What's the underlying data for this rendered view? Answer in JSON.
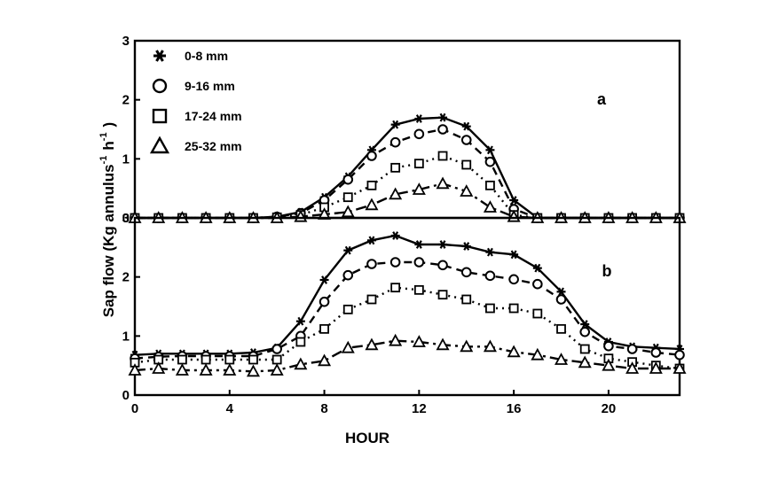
{
  "chart_data": {
    "type": "line",
    "xlabel": "HOUR",
    "ylabel": "Sap flow (Kg annulus",
    "ylabel_unit_parts": [
      "-1",
      "h",
      "-1",
      ")"
    ],
    "xlim": [
      0,
      23
    ],
    "ylim": [
      0,
      3
    ],
    "x_ticks": [
      "0",
      "4",
      "8",
      "12",
      "16",
      "20"
    ],
    "y_ticks": [
      "0",
      "1",
      "2",
      "3"
    ],
    "legend": [
      {
        "label": "0-8 mm",
        "symbol": "star"
      },
      {
        "label": "9-16 mm",
        "symbol": "circle"
      },
      {
        "label": "17-24 mm",
        "symbol": "square"
      },
      {
        "label": "25-32 mm",
        "symbol": "triangle"
      }
    ],
    "x": [
      0,
      1,
      2,
      3,
      4,
      5,
      6,
      7,
      8,
      9,
      10,
      11,
      12,
      13,
      14,
      15,
      16,
      17,
      18,
      19,
      20,
      21,
      22,
      23
    ],
    "panels": [
      {
        "tag": "a",
        "series": [
          {
            "name": "0-8 mm",
            "symbol": "star",
            "dash": "solid",
            "values": [
              0,
              0,
              0,
              0,
              0,
              0,
              0.02,
              0.1,
              0.35,
              0.7,
              1.15,
              1.58,
              1.68,
              1.7,
              1.55,
              1.15,
              0.3,
              0,
              0,
              0,
              0,
              0,
              0,
              0
            ]
          },
          {
            "name": "9-16 mm",
            "symbol": "circle",
            "dash": "dashed",
            "values": [
              0,
              0,
              0,
              0,
              0,
              0,
              0.02,
              0.08,
              0.3,
              0.65,
              1.05,
              1.28,
              1.42,
              1.5,
              1.32,
              0.95,
              0.15,
              0,
              0,
              0,
              0,
              0,
              0,
              0
            ]
          },
          {
            "name": "17-24 mm",
            "symbol": "square",
            "dash": "dotted",
            "values": [
              0,
              0,
              0,
              0,
              0,
              0,
              0.01,
              0.05,
              0.18,
              0.35,
              0.55,
              0.85,
              0.92,
              1.05,
              0.9,
              0.55,
              0.05,
              0,
              0,
              0,
              0,
              0,
              0,
              0
            ]
          },
          {
            "name": "25-32 mm",
            "symbol": "triangle",
            "dash": "dashdot",
            "values": [
              0,
              0,
              0,
              0,
              0,
              0,
              0,
              0.02,
              0.06,
              0.1,
              0.22,
              0.4,
              0.48,
              0.58,
              0.45,
              0.18,
              0.02,
              0,
              0,
              0,
              0,
              0,
              0,
              0
            ]
          }
        ]
      },
      {
        "tag": "b",
        "series": [
          {
            "name": "0-8 mm",
            "symbol": "star",
            "dash": "solid",
            "values": [
              0.68,
              0.7,
              0.7,
              0.7,
              0.7,
              0.72,
              0.8,
              1.25,
              1.95,
              2.45,
              2.62,
              2.7,
              2.55,
              2.55,
              2.52,
              2.42,
              2.38,
              2.15,
              1.75,
              1.2,
              0.9,
              0.82,
              0.8,
              0.78
            ]
          },
          {
            "name": "9-16 mm",
            "symbol": "circle",
            "dash": "dashed",
            "values": [
              0.62,
              0.65,
              0.66,
              0.66,
              0.66,
              0.66,
              0.78,
              1.0,
              1.58,
              2.03,
              2.22,
              2.25,
              2.25,
              2.2,
              2.08,
              2.02,
              1.96,
              1.88,
              1.62,
              1.07,
              0.83,
              0.78,
              0.72,
              0.68
            ]
          },
          {
            "name": "17-24 mm",
            "symbol": "square",
            "dash": "dotted",
            "values": [
              0.55,
              0.6,
              0.6,
              0.6,
              0.6,
              0.6,
              0.6,
              0.9,
              1.12,
              1.45,
              1.62,
              1.82,
              1.78,
              1.7,
              1.62,
              1.47,
              1.47,
              1.38,
              1.12,
              0.78,
              0.62,
              0.56,
              0.5,
              0.45
            ]
          },
          {
            "name": "25-32 mm",
            "symbol": "triangle",
            "dash": "dashdot",
            "values": [
              0.42,
              0.45,
              0.42,
              0.42,
              0.42,
              0.4,
              0.42,
              0.52,
              0.58,
              0.8,
              0.85,
              0.92,
              0.9,
              0.85,
              0.82,
              0.82,
              0.73,
              0.68,
              0.6,
              0.55,
              0.5,
              0.45,
              0.45,
              0.45
            ]
          }
        ]
      }
    ],
    "grid": false,
    "legend_position": "top-left",
    "colors": {
      "line": "#000000",
      "background": "#ffffff"
    }
  }
}
